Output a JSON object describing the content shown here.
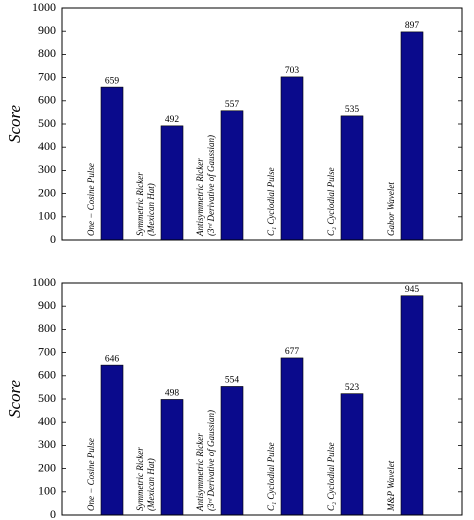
{
  "chart_data": [
    {
      "type": "bar",
      "y_label": "Score",
      "color": "#0a0a8c",
      "categories": [
        [
          "One − Cosine Pulse"
        ],
        [
          "Symmetric Ricker",
          "(Mexican Hat)"
        ],
        [
          "Antisymmetric Ricker",
          "(3ʳᵈ Derivative of Gaussian)"
        ],
        [
          "C₁ Cyclodial Pulse"
        ],
        [
          "C₂ Cyclodial Pulse"
        ],
        [
          "Gabor Wavelet"
        ]
      ],
      "values": [
        659,
        492,
        557,
        703,
        535,
        897
      ],
      "ylim": [
        0,
        1000
      ],
      "yticks": [
        0,
        100,
        200,
        300,
        400,
        500,
        600,
        700,
        800,
        900,
        1000
      ]
    },
    {
      "type": "bar",
      "y_label": "Score",
      "color": "#0a0a8c",
      "categories": [
        [
          "One − Cosine Pulse"
        ],
        [
          "Symmetric Ricker",
          "(Mexican Hat)"
        ],
        [
          "Antisymmetric Ricker",
          "(3ʳᵈ Derivative of Gaussian)"
        ],
        [
          "C₁ Cyclodial Pulse"
        ],
        [
          "C₂ Cyclodial Pulse"
        ],
        [
          "M&P Wavelet"
        ]
      ],
      "values": [
        646,
        498,
        554,
        677,
        523,
        945
      ],
      "ylim": [
        0,
        1000
      ],
      "yticks": [
        0,
        100,
        200,
        300,
        400,
        500,
        600,
        700,
        800,
        900,
        1000
      ]
    }
  ]
}
